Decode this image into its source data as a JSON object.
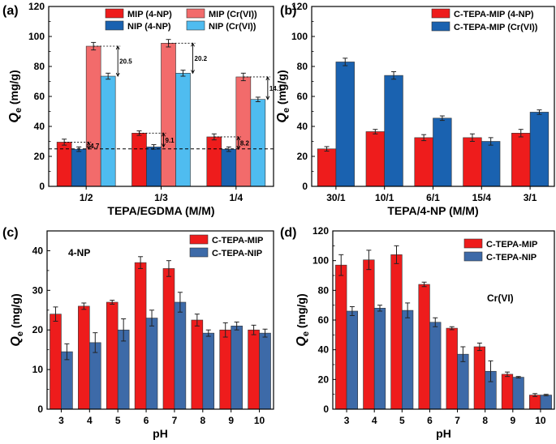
{
  "colors": {
    "red": "#ee1c1c",
    "blue": "#1a62b0",
    "pink": "#f26b6b",
    "light_blue": "#4fbcf0",
    "steel_blue": "#3d6aa8"
  },
  "chart_data": [
    {
      "panel": "(a)",
      "type": "bar",
      "xlabel": "TEPA/EGDMA (M/M)",
      "ylabel": "Q",
      "ylabel_sub": "e",
      "ylabel_unit": " (mg/g)",
      "ylim": [
        0,
        120
      ],
      "yticks": [
        0,
        20,
        40,
        60,
        80,
        100,
        120
      ],
      "categories": [
        "1/2",
        "1/3",
        "1/4"
      ],
      "reference_line": 25,
      "legend_position": "top",
      "series": [
        {
          "name": "MIP (4-NP)",
          "color_key": "red",
          "values": [
            29.5,
            35.5,
            33
          ],
          "errors": [
            2,
            1.5,
            2
          ]
        },
        {
          "name": "NIP (4-NP)",
          "color_key": "blue",
          "values": [
            24.8,
            26.3,
            24.8
          ],
          "errors": [
            1.5,
            1.5,
            1.5
          ]
        },
        {
          "name": "MIP (Cr(VI))",
          "color_key": "pink",
          "values": [
            93.5,
            95.5,
            73
          ],
          "errors": [
            2.5,
            2.5,
            2.5
          ]
        },
        {
          "name": "NIP (Cr(VI))",
          "color_key": "light_blue",
          "values": [
            73.5,
            75.5,
            58
          ],
          "errors": [
            2,
            2,
            1.5
          ]
        }
      ],
      "annotations": [
        {
          "text": "4.7",
          "category": 0,
          "pair": "4-NP"
        },
        {
          "text": "20.5",
          "category": 0,
          "pair": "Cr(VI)"
        },
        {
          "text": "9.1",
          "category": 1,
          "pair": "4-NP"
        },
        {
          "text": "20.2",
          "category": 1,
          "pair": "Cr(VI)"
        },
        {
          "text": "8.2",
          "category": 2,
          "pair": "4-NP"
        },
        {
          "text": "14.1",
          "category": 2,
          "pair": "Cr(VI)"
        }
      ]
    },
    {
      "panel": "(b)",
      "type": "bar",
      "xlabel": "TEPA/4-NP (M/M)",
      "ylabel": "Q",
      "ylabel_sub": "e",
      "ylabel_unit": " (mg/g)",
      "ylim": [
        0,
        120
      ],
      "yticks": [
        0,
        20,
        40,
        60,
        80,
        100,
        120
      ],
      "categories": [
        "30/1",
        "10/1",
        "6/1",
        "15/4",
        "3/1"
      ],
      "legend_position": "top-right",
      "series": [
        {
          "name": "C-TEPA-MIP (4-NP)",
          "color_key": "red",
          "values": [
            25,
            36.5,
            32.5,
            32.5,
            35.5
          ],
          "errors": [
            1.5,
            1.5,
            2,
            2.5,
            2.5
          ]
        },
        {
          "name": "C-TEPA-MIP (Cr(VI))",
          "color_key": "blue",
          "values": [
            83,
            74,
            45.5,
            30,
            49.5
          ],
          "errors": [
            2.5,
            2.5,
            1.5,
            2.5,
            1.5
          ]
        }
      ]
    },
    {
      "panel": "(c)",
      "type": "bar",
      "xlabel": "pH",
      "ylabel": "Q",
      "ylabel_sub": "e",
      "ylabel_unit": " (mg/g)",
      "ylim": [
        0,
        45
      ],
      "yticks": [
        0,
        10,
        20,
        30,
        40
      ],
      "categories": [
        "3",
        "4",
        "5",
        "6",
        "7",
        "8",
        "9",
        "10"
      ],
      "annotation": "4-NP",
      "legend_position": "top-right",
      "series": [
        {
          "name": "C-TEPA-MIP",
          "color_key": "red",
          "values": [
            24,
            26,
            27,
            37,
            35.5,
            22.5,
            20,
            20
          ],
          "errors": [
            1.8,
            0.8,
            0.5,
            1.5,
            2,
            1.5,
            1.8,
            1.2
          ]
        },
        {
          "name": "C-TEPA-NIP",
          "color_key": "steel_blue",
          "values": [
            14.5,
            16.8,
            20,
            23,
            27,
            19.2,
            21,
            19.2
          ],
          "errors": [
            2,
            2.5,
            2.8,
            2,
            2.5,
            0.8,
            1,
            1
          ]
        }
      ]
    },
    {
      "panel": "(d)",
      "type": "bar",
      "xlabel": "pH",
      "ylabel": "Q",
      "ylabel_sub": "e",
      "ylabel_unit": " (mg/g)",
      "ylim": [
        0,
        120
      ],
      "yticks": [
        0,
        20,
        40,
        60,
        80,
        100,
        120
      ],
      "categories": [
        "3",
        "4",
        "5",
        "6",
        "7",
        "8",
        "9",
        "10"
      ],
      "annotation": "Cr(VI)",
      "legend_position": "top-right",
      "series": [
        {
          "name": "C-TEPA-MIP",
          "color_key": "red",
          "values": [
            97,
            100.5,
            104,
            84,
            54.5,
            42,
            23.5,
            9.5
          ],
          "errors": [
            7,
            6.5,
            6,
            1.5,
            1,
            2.5,
            1.5,
            1
          ]
        },
        {
          "name": "C-TEPA-NIP",
          "color_key": "steel_blue",
          "values": [
            66,
            68,
            66.5,
            58.5,
            37,
            25.5,
            21.5,
            9.5
          ],
          "errors": [
            3,
            2,
            5,
            3,
            5,
            7,
            0.5,
            0.5
          ]
        }
      ]
    }
  ]
}
